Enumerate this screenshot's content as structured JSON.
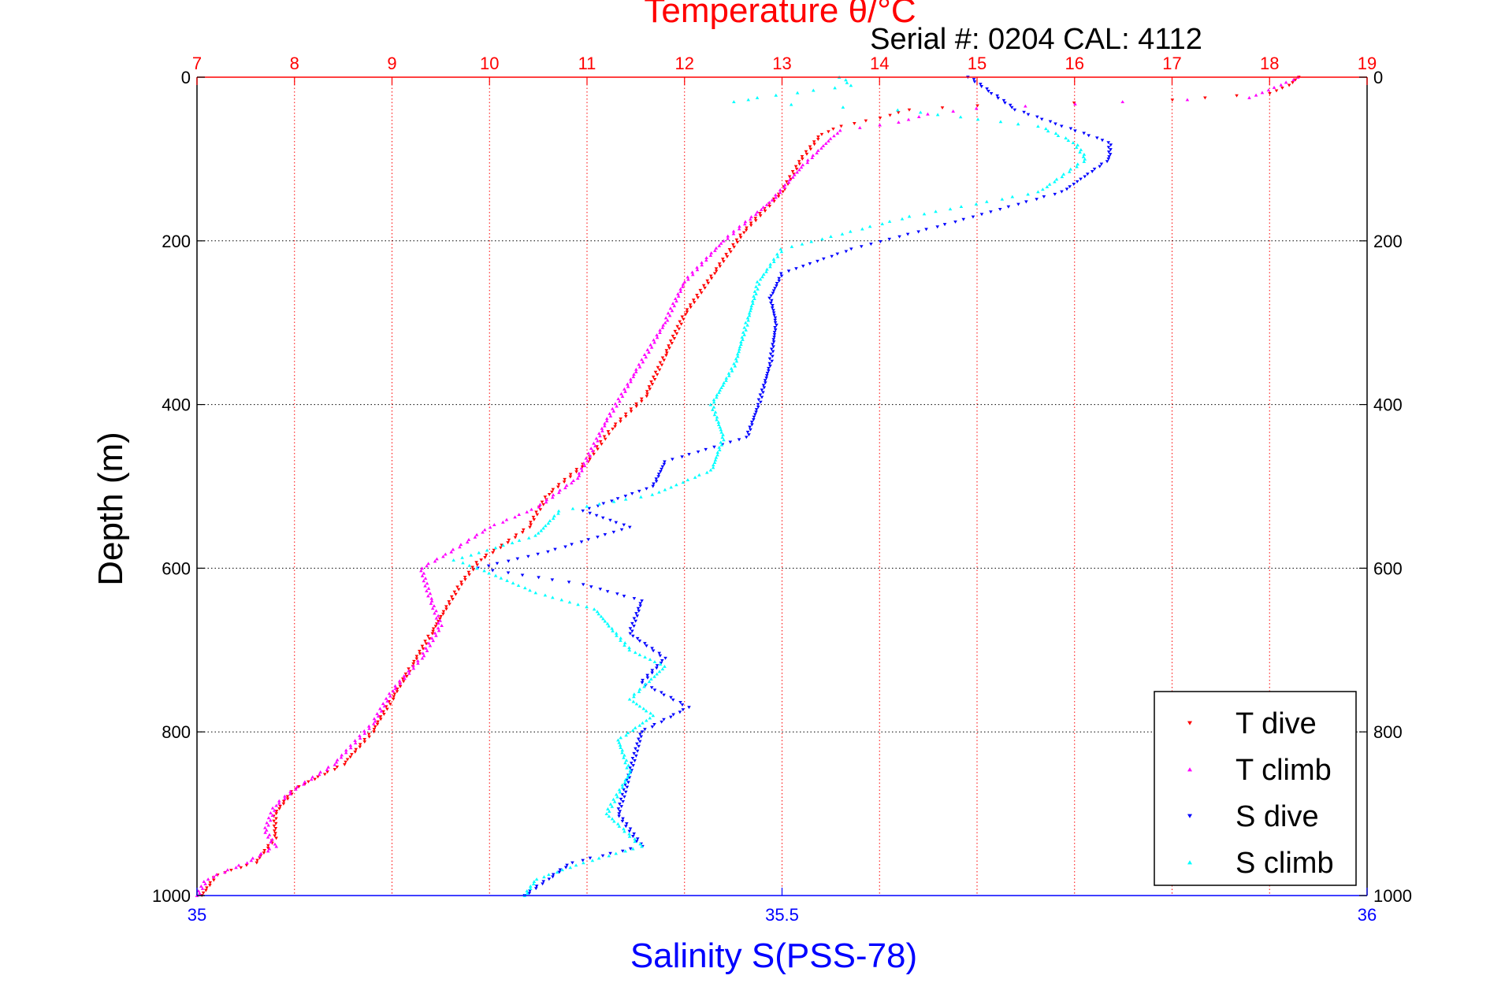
{
  "chart_data": {
    "type": "scatter",
    "title": "Temperature θ/°C",
    "subtitle": "Serial #: 0204  CAL: 4112",
    "ylabel": "Depth (m)",
    "xlabel": "Salinity S(PSS-78)",
    "grid": true,
    "legend_position": "bottom-right",
    "y_axis": {
      "label": "Depth (m)",
      "range": [
        0,
        1000
      ],
      "reversed": true,
      "ticks": [
        0,
        200,
        400,
        600,
        800,
        1000
      ]
    },
    "x_top": {
      "label": "Temperature θ/°C",
      "range": [
        7,
        19
      ],
      "ticks": [
        7,
        8,
        9,
        10,
        11,
        12,
        13,
        14,
        15,
        16,
        17,
        18,
        19
      ],
      "color": "#ff0000"
    },
    "x_bottom": {
      "label": "Salinity S(PSS-78)",
      "range": [
        35,
        36
      ],
      "ticks": [
        35,
        35.5,
        36
      ],
      "color": "#0000ff"
    },
    "series": [
      {
        "name": "T dive",
        "axis": "temperature",
        "color": "#ff0000",
        "marker": "triangle-down",
        "points": [
          [
            18.3,
            0
          ],
          [
            18.2,
            10
          ],
          [
            18.0,
            20
          ],
          [
            17.0,
            28
          ],
          [
            15.0,
            35
          ],
          [
            14.3,
            40
          ],
          [
            14.0,
            50
          ],
          [
            13.6,
            60
          ],
          [
            13.4,
            70
          ],
          [
            13.2,
            100
          ],
          [
            13.0,
            140
          ],
          [
            12.6,
            190
          ],
          [
            12.3,
            240
          ],
          [
            12.0,
            290
          ],
          [
            11.8,
            340
          ],
          [
            11.6,
            390
          ],
          [
            11.25,
            430
          ],
          [
            11.0,
            470
          ],
          [
            10.6,
            510
          ],
          [
            10.4,
            550
          ],
          [
            10.1,
            575
          ],
          [
            9.9,
            590
          ],
          [
            9.7,
            620
          ],
          [
            9.4,
            680
          ],
          [
            9.2,
            720
          ],
          [
            9.0,
            760
          ],
          [
            8.8,
            800
          ],
          [
            8.5,
            840
          ],
          [
            8.0,
            870
          ],
          [
            7.8,
            900
          ],
          [
            7.8,
            930
          ],
          [
            7.6,
            960
          ],
          [
            7.2,
            975
          ],
          [
            7.05,
            1000
          ]
        ]
      },
      {
        "name": "T climb",
        "axis": "temperature",
        "color": "#ff00ff",
        "marker": "triangle-up",
        "points": [
          [
            18.3,
            0
          ],
          [
            17.8,
            25
          ],
          [
            16.5,
            30
          ],
          [
            15.0,
            38
          ],
          [
            14.5,
            45
          ],
          [
            14.2,
            55
          ],
          [
            13.6,
            65
          ],
          [
            13.5,
            75
          ],
          [
            13.2,
            110
          ],
          [
            12.9,
            150
          ],
          [
            12.4,
            200
          ],
          [
            12.0,
            250
          ],
          [
            11.8,
            300
          ],
          [
            11.5,
            360
          ],
          [
            11.2,
            420
          ],
          [
            10.9,
            490
          ],
          [
            10.5,
            525
          ],
          [
            10.0,
            550
          ],
          [
            9.6,
            580
          ],
          [
            9.3,
            600
          ],
          [
            9.4,
            640
          ],
          [
            9.5,
            670
          ],
          [
            9.3,
            710
          ],
          [
            9.0,
            750
          ],
          [
            8.8,
            790
          ],
          [
            8.4,
            840
          ],
          [
            8.0,
            870
          ],
          [
            7.8,
            890
          ],
          [
            7.7,
            920
          ],
          [
            7.8,
            940
          ],
          [
            7.5,
            960
          ],
          [
            7.1,
            980
          ],
          [
            7.0,
            1000
          ]
        ]
      },
      {
        "name": "S dive",
        "axis": "salinity",
        "color": "#0000ff",
        "marker": "triangle-down",
        "points": [
          [
            35.66,
            0
          ],
          [
            35.68,
            20
          ],
          [
            35.7,
            40
          ],
          [
            35.74,
            60
          ],
          [
            35.78,
            80
          ],
          [
            35.78,
            100
          ],
          [
            35.74,
            140
          ],
          [
            35.64,
            180
          ],
          [
            35.56,
            210
          ],
          [
            35.5,
            240
          ],
          [
            35.49,
            270
          ],
          [
            35.495,
            300
          ],
          [
            35.49,
            350
          ],
          [
            35.48,
            400
          ],
          [
            35.47,
            440
          ],
          [
            35.4,
            470
          ],
          [
            35.39,
            500
          ],
          [
            35.33,
            530
          ],
          [
            35.37,
            550
          ],
          [
            35.3,
            580
          ],
          [
            35.24,
            600
          ],
          [
            35.33,
            620
          ],
          [
            35.38,
            640
          ],
          [
            35.37,
            680
          ],
          [
            35.4,
            710
          ],
          [
            35.38,
            740
          ],
          [
            35.42,
            770
          ],
          [
            35.38,
            800
          ],
          [
            35.37,
            850
          ],
          [
            35.36,
            900
          ],
          [
            35.38,
            940
          ],
          [
            35.32,
            960
          ],
          [
            35.3,
            980
          ],
          [
            35.28,
            1000
          ]
        ]
      },
      {
        "name": "S climb",
        "axis": "salinity",
        "color": "#00ffff",
        "marker": "triangle-up",
        "points": [
          [
            35.55,
            0
          ],
          [
            35.56,
            10
          ],
          [
            35.48,
            25
          ],
          [
            35.46,
            30
          ],
          [
            35.6,
            40
          ],
          [
            35.72,
            60
          ],
          [
            35.75,
            80
          ],
          [
            35.76,
            100
          ],
          [
            35.72,
            140
          ],
          [
            35.61,
            170
          ],
          [
            35.5,
            210
          ],
          [
            35.48,
            250
          ],
          [
            35.47,
            300
          ],
          [
            35.46,
            350
          ],
          [
            35.44,
            400
          ],
          [
            35.45,
            440
          ],
          [
            35.44,
            480
          ],
          [
            35.39,
            510
          ],
          [
            35.31,
            530
          ],
          [
            35.29,
            560
          ],
          [
            35.22,
            590
          ],
          [
            35.24,
            600
          ],
          [
            35.29,
            630
          ],
          [
            35.34,
            650
          ],
          [
            35.37,
            700
          ],
          [
            35.4,
            720
          ],
          [
            35.37,
            760
          ],
          [
            35.39,
            780
          ],
          [
            35.36,
            810
          ],
          [
            35.37,
            850
          ],
          [
            35.35,
            900
          ],
          [
            35.38,
            940
          ],
          [
            35.33,
            960
          ],
          [
            35.29,
            980
          ],
          [
            35.28,
            1000
          ]
        ]
      }
    ]
  }
}
